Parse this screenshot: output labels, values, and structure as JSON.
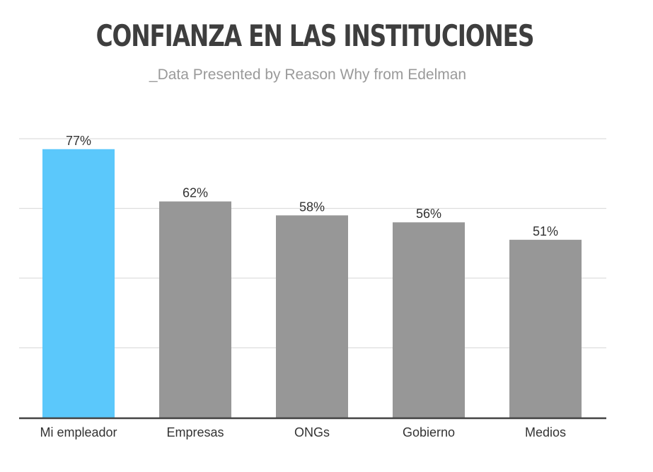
{
  "chart_data": {
    "type": "bar",
    "title": "CONFIANZA EN LAS INSTITUCIONES",
    "subtitle": "_Data Presented by Reason Why from Edelman",
    "categories": [
      "Mi empleador",
      "Empresas",
      "ONGs",
      "Gobierno",
      "Medios"
    ],
    "values": [
      77,
      62,
      58,
      56,
      51
    ],
    "value_labels": [
      "77%",
      "62%",
      "58%",
      "56%",
      "51%"
    ],
    "highlight_index": 0,
    "ylim": [
      0,
      80
    ],
    "gridlines": [
      20,
      40,
      60,
      80
    ],
    "xlabel": "",
    "ylabel": ""
  },
  "colors": {
    "highlight": "#5bc8fb",
    "bar": "#979797",
    "grid": "#dddddd",
    "axis": "#444444"
  }
}
